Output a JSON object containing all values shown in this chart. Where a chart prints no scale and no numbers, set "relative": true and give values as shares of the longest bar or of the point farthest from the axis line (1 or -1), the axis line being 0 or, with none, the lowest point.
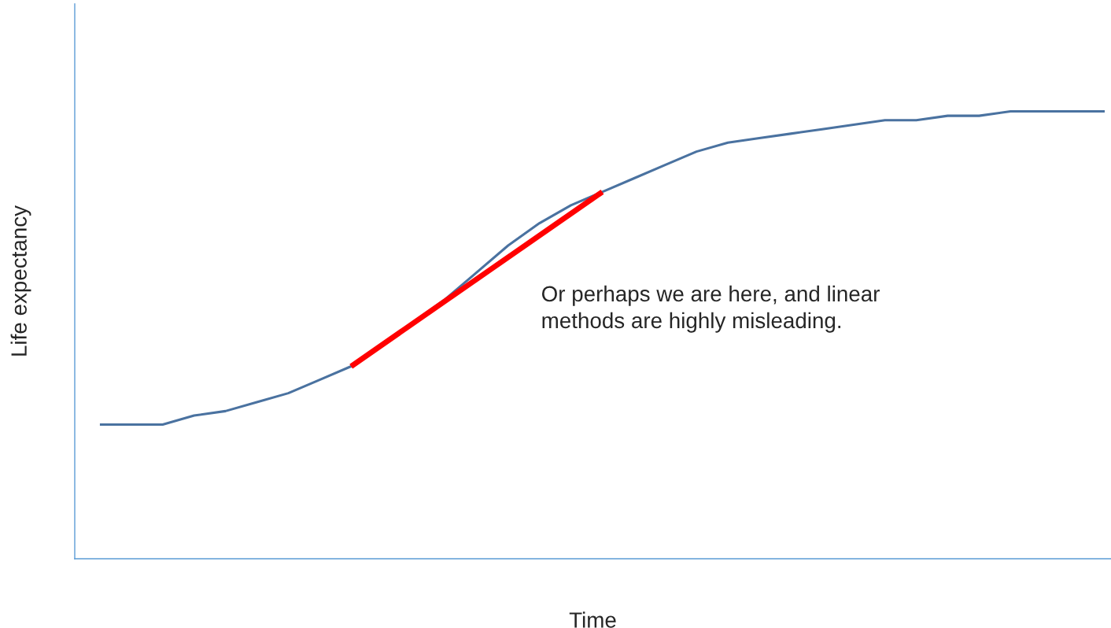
{
  "chart_data": {
    "type": "line",
    "relative": true,
    "xlabel": "Time",
    "ylabel": "Life expectancy",
    "categories": [
      null,
      null,
      null,
      null,
      null,
      null,
      null,
      null,
      null,
      null,
      null,
      null,
      null,
      null,
      null,
      null,
      null,
      null,
      null,
      null,
      null,
      null,
      null,
      null,
      null,
      null,
      null,
      null,
      null,
      null,
      null,
      null,
      null
    ],
    "series": [
      {
        "color": "#4a72a0",
        "values": [
          0.3,
          0.3,
          0.3,
          0.32,
          0.33,
          0.35,
          0.37,
          0.4,
          0.43,
          null,
          null,
          0.58,
          0.64,
          0.7,
          0.75,
          0.79,
          0.82,
          0.85,
          0.88,
          0.91,
          0.93,
          0.94,
          0.95,
          0.96,
          0.97,
          0.98,
          0.98,
          0.99,
          0.99,
          1.0,
          1.0,
          1.0,
          1.0
        ]
      },
      {
        "color": "#ff0000",
        "values": [
          null,
          null,
          null,
          null,
          null,
          null,
          null,
          null,
          0.43,
          null,
          null,
          null,
          null,
          null,
          null,
          null,
          0.82,
          null,
          null,
          null,
          null,
          null,
          null,
          null,
          null,
          null,
          null,
          null,
          null,
          null,
          null,
          null,
          null
        ]
      }
    ],
    "annotations": [
      "Or perhaps we are here, and linear\nmethods are highly misleading."
    ],
    "grid": false
  }
}
